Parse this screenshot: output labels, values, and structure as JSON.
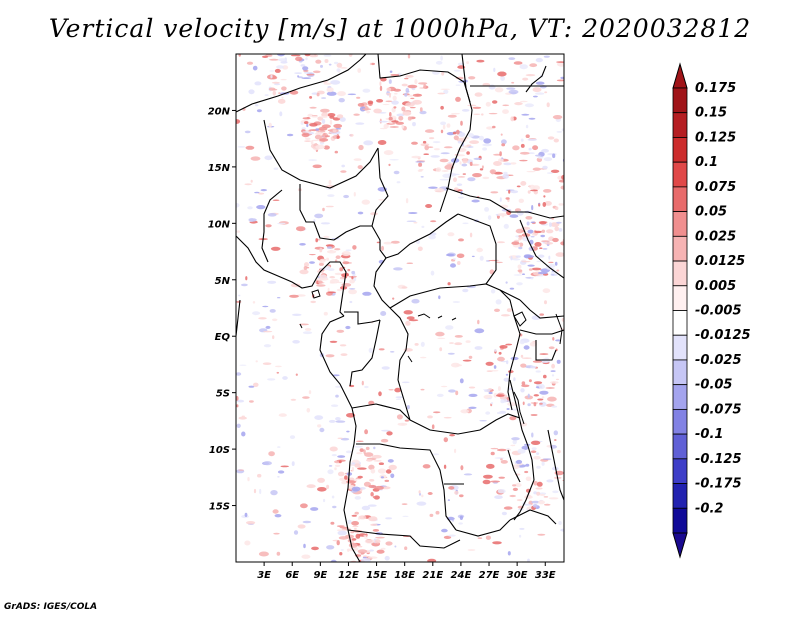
{
  "title": "Vertical velocity [m/s] at 1000hPa, VT: 2020032812",
  "footer": "GrADS: IGES/COLA",
  "map": {
    "lon_range": [
      0,
      35
    ],
    "lat_range": [
      -20,
      25
    ],
    "lon_ticks": [
      "3E",
      "6E",
      "9E",
      "12E",
      "15E",
      "18E",
      "21E",
      "24E",
      "27E",
      "30E",
      "33E"
    ],
    "lat_ticks": [
      "20N",
      "15N",
      "10N",
      "5N",
      "EQ",
      "5S",
      "10S",
      "15S"
    ]
  },
  "colorbar": {
    "labels": [
      "0.175",
      "0.15",
      "0.125",
      "0.1",
      "0.075",
      "0.05",
      "0.025",
      "0.0125",
      "0.005",
      "-0.005",
      "-0.0125",
      "-0.025",
      "-0.05",
      "-0.075",
      "-0.1",
      "-0.125",
      "-0.175",
      "-0.2"
    ],
    "colors": [
      "#a01418",
      "#b51e22",
      "#cc2c2c",
      "#e04848",
      "#e86b6b",
      "#f08f8f",
      "#f6b3b3",
      "#fbd5d5",
      "#fff0f0",
      "#ffffff",
      "#e2e2fb",
      "#c6c6f5",
      "#a4a4ee",
      "#8282e4",
      "#6060d6",
      "#3e3ec8",
      "#2222b0",
      "#100a98"
    ],
    "top_color": "#a01418",
    "bottom_color": "#1a0a90"
  }
}
